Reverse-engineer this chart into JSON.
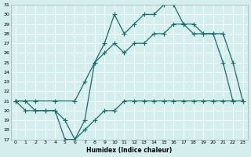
{
  "xlabel": "Humidex (Indice chaleur)",
  "bg_color": "#d4eeee",
  "grid_color": "#ffffff",
  "line_color": "#1a6b6b",
  "ylim": [
    17,
    31
  ],
  "xlim": [
    -0.5,
    23.5
  ],
  "yticks": [
    17,
    18,
    19,
    20,
    21,
    22,
    23,
    24,
    25,
    26,
    27,
    28,
    29,
    30,
    31
  ],
  "xticks": [
    0,
    1,
    2,
    3,
    4,
    5,
    6,
    7,
    8,
    9,
    10,
    11,
    12,
    13,
    14,
    15,
    16,
    17,
    18,
    19,
    20,
    21,
    22,
    23
  ],
  "x_max": [
    0,
    1,
    2,
    3,
    4,
    5,
    6,
    7,
    8,
    9,
    10,
    11,
    12,
    13,
    14,
    15,
    16,
    17,
    18,
    19,
    20,
    21,
    22
  ],
  "y_max": [
    21,
    21,
    20,
    20,
    20,
    19,
    17,
    19,
    25,
    27,
    30,
    28,
    29,
    30,
    30,
    31,
    31,
    29,
    29,
    28,
    28,
    25,
    21
  ],
  "x_mid": [
    0,
    2,
    4,
    6,
    7,
    8,
    9,
    10,
    11,
    12,
    13,
    14,
    15,
    16,
    17,
    18,
    19,
    20,
    21,
    22,
    23
  ],
  "y_mid": [
    21,
    21,
    21,
    21,
    23,
    25,
    26,
    27,
    26,
    27,
    27,
    28,
    28,
    29,
    29,
    28,
    28,
    28,
    28,
    25,
    21
  ],
  "x_min": [
    0,
    1,
    2,
    3,
    4,
    5,
    6,
    7,
    8,
    9,
    10,
    11,
    12,
    13,
    14,
    15,
    16,
    17,
    18,
    19,
    20,
    21,
    22,
    23
  ],
  "y_min": [
    21,
    20,
    20,
    20,
    20,
    17,
    17,
    18,
    19,
    20,
    20,
    21,
    21,
    21,
    21,
    21,
    21,
    21,
    21,
    21,
    21,
    21,
    21,
    21
  ]
}
